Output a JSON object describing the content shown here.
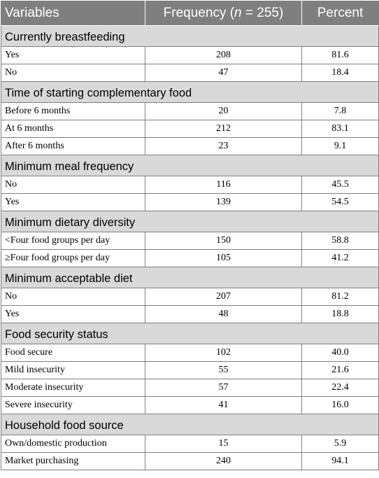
{
  "header": {
    "col1": "Variables",
    "col2_prefix": "Frequency (",
    "col2_n": "n",
    "col2_suffix": " = 255)",
    "col3": "Percent"
  },
  "sections": [
    {
      "title": "Currently breastfeeding",
      "rows": [
        {
          "label": "Yes",
          "frequency": "208",
          "percent": "81.6"
        },
        {
          "label": "No",
          "frequency": "47",
          "percent": "18.4"
        }
      ]
    },
    {
      "title": "Time of starting complementary food",
      "rows": [
        {
          "label": "Before 6 months",
          "frequency": "20",
          "percent": "7.8"
        },
        {
          "label": "At 6 months",
          "frequency": "212",
          "percent": "83.1"
        },
        {
          "label": "After 6 months",
          "frequency": "23",
          "percent": "9.1"
        }
      ]
    },
    {
      "title": "Minimum meal frequency",
      "rows": [
        {
          "label": "No",
          "frequency": "116",
          "percent": "45.5"
        },
        {
          "label": "Yes",
          "frequency": "139",
          "percent": "54.5"
        }
      ]
    },
    {
      "title": "Minimum dietary diversity",
      "rows": [
        {
          "label": "<Four food groups per day",
          "frequency": "150",
          "percent": "58.8"
        },
        {
          "label": "≥Four food groups per day",
          "frequency": "105",
          "percent": "41.2"
        }
      ]
    },
    {
      "title": "Minimum acceptable diet",
      "rows": [
        {
          "label": "No",
          "frequency": "207",
          "percent": "81.2"
        },
        {
          "label": "Yes",
          "frequency": "48",
          "percent": "18.8"
        }
      ]
    },
    {
      "title": "Food security status",
      "rows": [
        {
          "label": "Food secure",
          "frequency": "102",
          "percent": "40.0"
        },
        {
          "label": "Mild insecurity",
          "frequency": "55",
          "percent": "21.6"
        },
        {
          "label": "Moderate insecurity",
          "frequency": "57",
          "percent": "22.4"
        },
        {
          "label": "Severe insecurity",
          "frequency": "41",
          "percent": "16.0"
        }
      ]
    },
    {
      "title": "Household food source",
      "rows": [
        {
          "label": "Own/domestic production",
          "frequency": "15",
          "percent": "5.9"
        },
        {
          "label": "Market purchasing",
          "frequency": "240",
          "percent": "94.1"
        }
      ]
    }
  ]
}
